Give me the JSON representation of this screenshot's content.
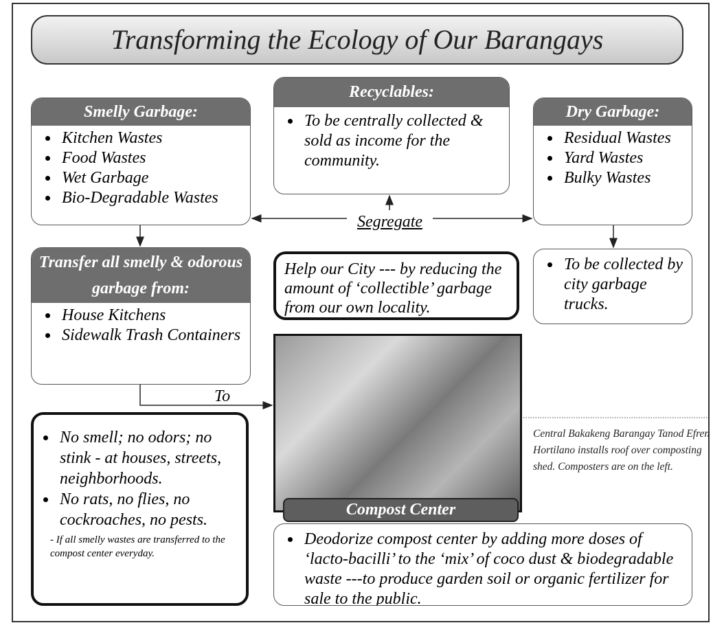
{
  "title": "Transforming the Ecology of Our Barangays",
  "smelly": {
    "header": "Smelly Garbage:",
    "items": [
      "Kitchen Wastes",
      "Food Wastes",
      "Wet Garbage",
      "Bio-Degradable Wastes"
    ]
  },
  "recyclables": {
    "header": "Recyclables:",
    "items": [
      "To be centrally collected & sold as income for the community."
    ]
  },
  "dry": {
    "header": "Dry Garbage:",
    "items": [
      "Residual Wastes",
      "Yard Wastes",
      "Bulky Wastes"
    ]
  },
  "segregate": "Segregate",
  "dry_collect": {
    "items": [
      "To be collected by city garbage trucks."
    ]
  },
  "transfer": {
    "header": "Transfer all smelly & odorous garbage from:",
    "items": [
      "House Kitchens",
      "Sidewalk Trash Containers"
    ]
  },
  "help": "Help our City --- by reducing the amount of ‘collectible’ garbage from our own locality.",
  "to_label": "To",
  "benefits": {
    "items": [
      "No smell; no odors; no stink - at houses, streets, neighborhoods.",
      "No rats, no flies, no cockroaches, no pests."
    ],
    "note": "- If all smelly wastes are transferred to the compost center everyday."
  },
  "photo_caption": "Central Bakakeng Barangay Tanod Efren Hortilano installs roof over composting shed. Composters are on the left.",
  "compost_label": "Compost Center",
  "deodorize": {
    "items": [
      "Deodorize compost center by adding more doses of ‘lacto-bacilli’ to the ‘mix’ of coco dust & biodegradable waste ---to produce garden soil or organic fertilizer for sale to the public."
    ]
  }
}
